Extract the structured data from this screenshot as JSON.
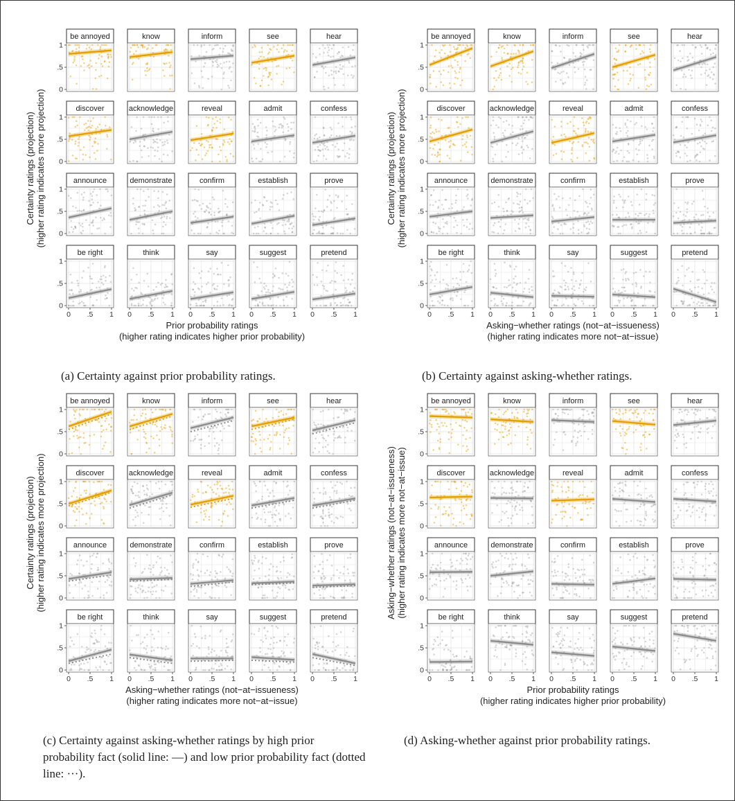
{
  "colors": {
    "highlight": "#E69F00",
    "grey": "#8c8c8c",
    "grid": "#e3e3e3"
  },
  "facet_labels": [
    "be annoyed",
    "know",
    "inform",
    "see",
    "hear",
    "discover",
    "acknowledge",
    "reveal",
    "admit",
    "confess",
    "announce",
    "demonstrate",
    "confirm",
    "establish",
    "prove",
    "be right",
    "think",
    "say",
    "suggest",
    "pretend"
  ],
  "highlighted_facets": [
    "be annoyed",
    "know",
    "see",
    "discover",
    "reveal"
  ],
  "x_ticks": [
    "0",
    ".5",
    "1"
  ],
  "y_ticks": [
    "0",
    ".5",
    "1"
  ],
  "captions": {
    "a": "(a) Certainty against prior probability ratings.",
    "b": "(b) Certainty against asking-whether ratings.",
    "c": "(c) Certainty against asking-whether ratings by high prior probability fact (solid line: —) and low prior probability fact (dotted line: ···).",
    "d": "(d) Asking-whether against prior probability ratings."
  },
  "chart_data": [
    {
      "id": "a",
      "type": "scatter",
      "xlabel": "Prior probability ratings",
      "xlabel2": "(higher rating indicates higher prior probability)",
      "ylabel": "Certainty ratings (projection)",
      "ylabel2": "(higher rating indicates more projection)",
      "xlim": [
        0,
        1
      ],
      "ylim": [
        0,
        1
      ],
      "fits": [
        [
          0.8,
          0.88
        ],
        [
          0.73,
          0.84
        ],
        [
          0.68,
          0.76
        ],
        [
          0.6,
          0.76
        ],
        [
          0.55,
          0.72
        ],
        [
          0.57,
          0.71
        ],
        [
          0.5,
          0.67
        ],
        [
          0.48,
          0.63
        ],
        [
          0.45,
          0.59
        ],
        [
          0.42,
          0.58
        ],
        [
          0.36,
          0.57
        ],
        [
          0.31,
          0.5
        ],
        [
          0.24,
          0.38
        ],
        [
          0.22,
          0.4
        ],
        [
          0.19,
          0.34
        ],
        [
          0.17,
          0.37
        ],
        [
          0.15,
          0.33
        ],
        [
          0.15,
          0.3
        ],
        [
          0.15,
          0.31
        ],
        [
          0.14,
          0.27
        ]
      ]
    },
    {
      "id": "b",
      "type": "scatter",
      "xlabel": "Asking−whether ratings (not−at−issueness)",
      "xlabel2": "(higher rating indicates more not−at−issue)",
      "ylabel": "Certainty ratings (projection)",
      "ylabel2": "(higher rating indicates more projection)",
      "xlim": [
        0,
        1
      ],
      "ylim": [
        0,
        1
      ],
      "fits": [
        [
          0.55,
          0.93
        ],
        [
          0.52,
          0.86
        ],
        [
          0.48,
          0.8
        ],
        [
          0.5,
          0.78
        ],
        [
          0.43,
          0.73
        ],
        [
          0.45,
          0.72
        ],
        [
          0.42,
          0.68
        ],
        [
          0.42,
          0.64
        ],
        [
          0.45,
          0.6
        ],
        [
          0.43,
          0.59
        ],
        [
          0.38,
          0.5
        ],
        [
          0.35,
          0.41
        ],
        [
          0.27,
          0.37
        ],
        [
          0.31,
          0.31
        ],
        [
          0.24,
          0.29
        ],
        [
          0.25,
          0.42
        ],
        [
          0.29,
          0.19
        ],
        [
          0.22,
          0.2
        ],
        [
          0.25,
          0.19
        ],
        [
          0.38,
          0.08
        ]
      ]
    },
    {
      "id": "c",
      "type": "scatter",
      "xlabel": "Asking−whether ratings (not−at−issueness)",
      "xlabel2": "(higher rating indicates more not−at−issue)",
      "ylabel": "Certainty ratings (projection)",
      "ylabel2": "(higher rating indicates more projection)",
      "xlim": [
        0,
        1
      ],
      "ylim": [
        0,
        1
      ],
      "fits": [
        [
          0.62,
          0.95
        ],
        [
          0.62,
          0.9
        ],
        [
          0.58,
          0.82
        ],
        [
          0.62,
          0.82
        ],
        [
          0.53,
          0.76
        ],
        [
          0.5,
          0.8
        ],
        [
          0.47,
          0.75
        ],
        [
          0.48,
          0.68
        ],
        [
          0.46,
          0.63
        ],
        [
          0.46,
          0.62
        ],
        [
          0.43,
          0.58
        ],
        [
          0.42,
          0.45
        ],
        [
          0.32,
          0.4
        ],
        [
          0.33,
          0.37
        ],
        [
          0.28,
          0.31
        ],
        [
          0.2,
          0.46
        ],
        [
          0.35,
          0.22
        ],
        [
          0.26,
          0.26
        ],
        [
          0.29,
          0.23
        ],
        [
          0.36,
          0.15
        ]
      ],
      "fits_low": [
        [
          0.55,
          0.9
        ],
        [
          0.55,
          0.85
        ],
        [
          0.5,
          0.75
        ],
        [
          0.55,
          0.78
        ],
        [
          0.45,
          0.7
        ],
        [
          0.45,
          0.76
        ],
        [
          0.4,
          0.7
        ],
        [
          0.42,
          0.62
        ],
        [
          0.4,
          0.58
        ],
        [
          0.4,
          0.58
        ],
        [
          0.38,
          0.52
        ],
        [
          0.38,
          0.42
        ],
        [
          0.26,
          0.36
        ],
        [
          0.3,
          0.34
        ],
        [
          0.24,
          0.28
        ],
        [
          0.15,
          0.36
        ],
        [
          0.28,
          0.15
        ],
        [
          0.2,
          0.22
        ],
        [
          0.22,
          0.18
        ],
        [
          0.28,
          0.1
        ]
      ]
    },
    {
      "id": "d",
      "type": "scatter",
      "xlabel": "Prior probability ratings",
      "xlabel2": "(higher rating indicates higher prior probability)",
      "ylabel": "Asking−whether ratings (not−at−issueness)",
      "ylabel2": "(higher rating indicates more not−at−issue)",
      "xlim": [
        0,
        1
      ],
      "ylim": [
        0,
        1
      ],
      "fits": [
        [
          0.85,
          0.82
        ],
        [
          0.78,
          0.72
        ],
        [
          0.76,
          0.72
        ],
        [
          0.74,
          0.66
        ],
        [
          0.65,
          0.75
        ],
        [
          0.64,
          0.66
        ],
        [
          0.63,
          0.62
        ],
        [
          0.57,
          0.6
        ],
        [
          0.61,
          0.54
        ],
        [
          0.61,
          0.55
        ],
        [
          0.58,
          0.59
        ],
        [
          0.5,
          0.6
        ],
        [
          0.32,
          0.3
        ],
        [
          0.32,
          0.44
        ],
        [
          0.43,
          0.41
        ],
        [
          0.18,
          0.19
        ],
        [
          0.66,
          0.57
        ],
        [
          0.4,
          0.32
        ],
        [
          0.53,
          0.43
        ],
        [
          0.82,
          0.66
        ]
      ]
    }
  ]
}
